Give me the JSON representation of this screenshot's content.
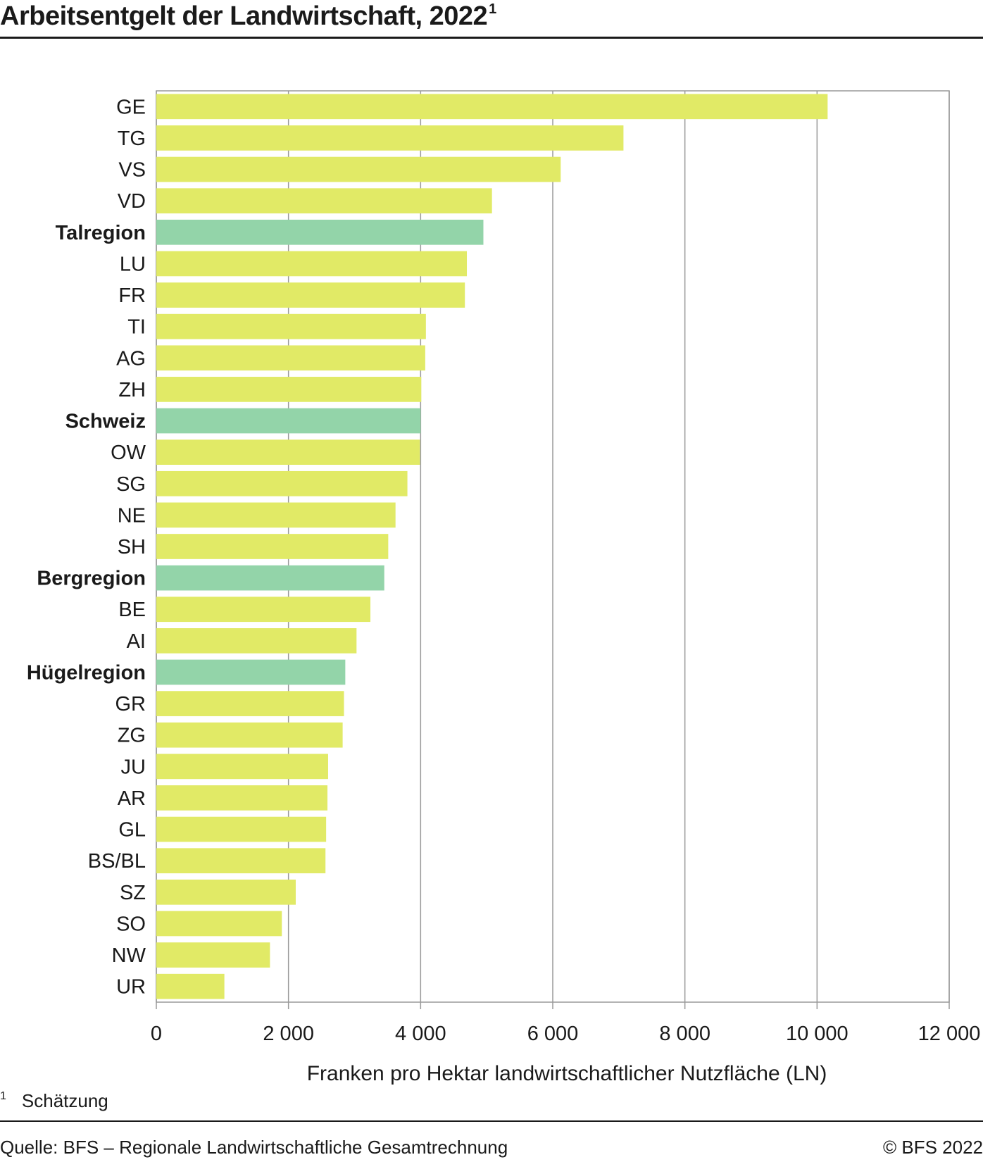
{
  "page": {
    "title": "Arbeitsentgelt der Landwirtschaft, 2022",
    "title_footnote_mark": "1",
    "footnote_mark": "1",
    "footnote_text": "Schätzung",
    "source": "Quelle: BFS – Regionale Landwirtschaftliche Gesamtrechnung",
    "copyright": "© BFS 2022"
  },
  "colors": {
    "canton": "#e1ea66",
    "region": "#93d4a9",
    "grid": "#9a9a9a",
    "text": "#1a1a1a"
  },
  "chart_data": {
    "type": "bar",
    "orientation": "horizontal",
    "title": "Arbeitsentgelt der Landwirtschaft, 2022",
    "xlabel": "Franken pro Hektar landwirtschaftlicher Nutzfläche (LN)",
    "ylabel": "",
    "xlim": [
      0,
      12000
    ],
    "xticks": [
      0,
      2000,
      4000,
      6000,
      8000,
      10000,
      12000
    ],
    "xtick_labels": [
      "0",
      "2 000",
      "4 000",
      "6 000",
      "8 000",
      "10 000",
      "12 000"
    ],
    "grid": "vertical",
    "categories": [
      "GE",
      "TG",
      "VS",
      "VD",
      "Talregion",
      "LU",
      "FR",
      "TI",
      "AG",
      "ZH",
      "Schweiz",
      "OW",
      "SG",
      "NE",
      "SH",
      "Bergregion",
      "BE",
      "AI",
      "Hügelregion",
      "GR",
      "ZG",
      "JU",
      "AR",
      "GL",
      "BS/BL",
      "SZ",
      "SO",
      "NW",
      "UR"
    ],
    "values": [
      10160,
      7070,
      6120,
      5080,
      4950,
      4700,
      4670,
      4080,
      4070,
      4010,
      4000,
      3990,
      3800,
      3620,
      3510,
      3450,
      3240,
      3030,
      2860,
      2840,
      2820,
      2600,
      2590,
      2570,
      2560,
      2110,
      1900,
      1720,
      1030
    ],
    "highlight": [
      "Talregion",
      "Schweiz",
      "Bergregion",
      "Hügelregion"
    ]
  }
}
